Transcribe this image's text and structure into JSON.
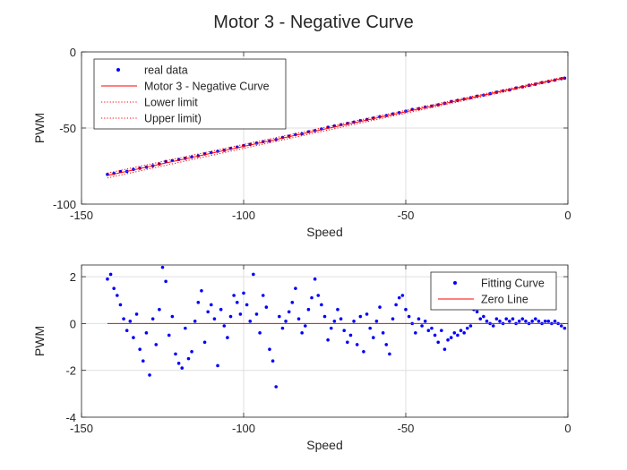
{
  "figure": {
    "title": "Motor 3 - Negative Curve"
  },
  "chart_data": [
    {
      "type": "scatter",
      "title": "Motor 3 - Negative Curve",
      "xlabel": "Speed",
      "ylabel": "PWM",
      "xlim": [
        -150,
        0
      ],
      "ylim": [
        -100,
        0
      ],
      "xticks": [
        -150,
        -100,
        -50,
        0
      ],
      "yticks": [
        -100,
        -50,
        0
      ],
      "grid": true,
      "legend_position": "top-left",
      "legend": [
        {
          "label": "real data",
          "style": "dots",
          "color": "#0000ff"
        },
        {
          "label": "Motor 3 - Negative Curve",
          "style": "solid",
          "color": "#ff0000"
        },
        {
          "label": "Lower limit",
          "style": "dotted",
          "color": "#ff0000"
        },
        {
          "label": "Upper limit)",
          "style": "dotted",
          "color": "#ff0000"
        }
      ],
      "series": [
        {
          "name": "real data",
          "type": "scatter",
          "color": "#0000ff",
          "x": [
            -142,
            -140,
            -138,
            -136,
            -134,
            -132,
            -130,
            -128,
            -126,
            -124,
            -122,
            -120,
            -118,
            -116,
            -114,
            -112,
            -110,
            -108,
            -106,
            -104,
            -102,
            -100,
            -98,
            -96,
            -94,
            -92,
            -90,
            -88,
            -86,
            -84,
            -82,
            -80,
            -78,
            -76,
            -74,
            -72,
            -70,
            -68,
            -66,
            -64,
            -62,
            -60,
            -58,
            -56,
            -54,
            -52,
            -50,
            -48,
            -46,
            -44,
            -42,
            -40,
            -38,
            -36,
            -34,
            -32,
            -30,
            -28,
            -26,
            -24,
            -22,
            -20,
            -18,
            -16,
            -14,
            -12,
            -10,
            -8,
            -6,
            -4,
            -2,
            -1
          ],
          "y": [
            -80.5,
            -79.8,
            -78.6,
            -78.5,
            -77.2,
            -76.4,
            -75.7,
            -74.8,
            -73.6,
            -72.0,
            -71.4,
            -70.7,
            -69.9,
            -69.0,
            -68.3,
            -67.0,
            -66.2,
            -65.3,
            -64.6,
            -63.4,
            -62.5,
            -61.6,
            -60.8,
            -59.9,
            -59.0,
            -58.5,
            -57.6,
            -56.2,
            -55.4,
            -54.3,
            -53.8,
            -52.5,
            -51.7,
            -50.6,
            -49.5,
            -48.6,
            -47.8,
            -47.0,
            -46.1,
            -45.1,
            -44.4,
            -43.5,
            -42.5,
            -41.8,
            -40.8,
            -39.9,
            -38.9,
            -37.8,
            -37.3,
            -36.2,
            -35.6,
            -34.8,
            -33.7,
            -32.6,
            -31.9,
            -30.9,
            -30.1,
            -29.1,
            -28.4,
            -27.4,
            -26.5,
            -25.6,
            -24.9,
            -23.7,
            -23.0,
            -21.9,
            -21.2,
            -20.2,
            -19.4,
            -18.5,
            -17.6,
            -17.2
          ]
        },
        {
          "name": "Motor 3 - Negative Curve",
          "type": "line",
          "color": "#ff0000",
          "x": [
            -142,
            -1
          ],
          "y": [
            -81.2,
            -17.0
          ]
        },
        {
          "name": "Lower limit",
          "type": "line",
          "style": "dotted",
          "color": "#ff0000",
          "x": [
            -142,
            -1
          ],
          "y": [
            -82.8,
            -17.6
          ]
        },
        {
          "name": "Upper limit)",
          "type": "line",
          "style": "dotted",
          "color": "#ff0000",
          "x": [
            -142,
            -1
          ],
          "y": [
            -79.6,
            -16.4
          ]
        }
      ]
    },
    {
      "type": "scatter",
      "xlabel": "Speed",
      "ylabel": "PWM",
      "xlim": [
        -150,
        0
      ],
      "ylim": [
        -4,
        2.5
      ],
      "xticks": [
        -150,
        -100,
        -50,
        0
      ],
      "yticks": [
        -4,
        -2,
        0,
        2
      ],
      "grid": true,
      "legend_position": "top-right",
      "legend": [
        {
          "label": "Fitting Curve",
          "style": "dots",
          "color": "#0000ff"
        },
        {
          "label": "Zero Line",
          "style": "solid",
          "color": "#ff0000"
        }
      ],
      "series": [
        {
          "name": "Fitting Curve",
          "type": "scatter",
          "color": "#0000ff",
          "x": [
            -142,
            -141,
            -140,
            -139,
            -138,
            -137,
            -136,
            -135,
            -134,
            -133,
            -132,
            -131,
            -130,
            -129,
            -128,
            -127,
            -126,
            -125,
            -124,
            -123,
            -122,
            -121,
            -120,
            -119,
            -118,
            -117,
            -116,
            -115,
            -114,
            -113,
            -112,
            -111,
            -110,
            -109,
            -108,
            -107,
            -106,
            -105,
            -104,
            -103,
            -102,
            -101,
            -100,
            -99,
            -98,
            -97,
            -96,
            -95,
            -94,
            -93,
            -92,
            -91,
            -90,
            -89,
            -88,
            -87,
            -86,
            -85,
            -84,
            -83,
            -82,
            -81,
            -80,
            -79,
            -78,
            -77,
            -76,
            -75,
            -74,
            -73,
            -72,
            -71,
            -70,
            -69,
            -68,
            -67,
            -66,
            -65,
            -64,
            -63,
            -62,
            -61,
            -60,
            -59,
            -58,
            -57,
            -56,
            -55,
            -54,
            -53,
            -52,
            -51,
            -50,
            -49,
            -48,
            -47,
            -46,
            -45,
            -44,
            -43,
            -42,
            -41,
            -40,
            -39,
            -38,
            -37,
            -36,
            -35,
            -34,
            -33,
            -32,
            -31,
            -30,
            -29,
            -28,
            -27,
            -26,
            -25,
            -24,
            -23,
            -22,
            -21,
            -20,
            -19,
            -18,
            -17,
            -16,
            -15,
            -14,
            -13,
            -12,
            -11,
            -10,
            -9,
            -8,
            -7,
            -6,
            -5,
            -4,
            -3,
            -2,
            -1
          ],
          "y": [
            1.9,
            2.1,
            1.5,
            1.2,
            0.8,
            0.2,
            -0.3,
            0.1,
            -0.6,
            0.4,
            -1.1,
            -1.6,
            -0.4,
            -2.2,
            0.2,
            -0.9,
            0.6,
            2.4,
            1.8,
            -0.5,
            0.3,
            -1.3,
            -1.7,
            -1.9,
            -0.2,
            -1.5,
            -1.2,
            0.1,
            0.9,
            1.4,
            -0.8,
            0.5,
            0.8,
            0.2,
            -1.8,
            0.6,
            -0.1,
            -0.6,
            0.3,
            1.2,
            0.9,
            0.4,
            1.3,
            0.8,
            0.1,
            2.1,
            0.4,
            -0.4,
            1.2,
            0.7,
            -1.1,
            -1.6,
            -2.7,
            0.3,
            -0.2,
            0.1,
            0.5,
            0.9,
            1.5,
            0.2,
            -0.4,
            -0.1,
            0.6,
            1.1,
            1.9,
            1.2,
            0.8,
            0.3,
            -0.7,
            -0.2,
            0.1,
            0.6,
            0.2,
            -0.3,
            -0.8,
            -0.5,
            0.1,
            -0.9,
            0.3,
            -1.2,
            0.4,
            -0.2,
            -0.6,
            0.1,
            0.7,
            -0.4,
            -0.9,
            -1.3,
            0.2,
            0.8,
            1.1,
            1.2,
            0.6,
            0.3,
            0.0,
            -0.4,
            0.2,
            -0.1,
            0.1,
            -0.3,
            -0.2,
            -0.5,
            -0.8,
            -0.3,
            -1.1,
            -0.7,
            -0.6,
            -0.4,
            -0.5,
            -0.3,
            -0.4,
            -0.2,
            -0.1,
            0.6,
            0.5,
            0.2,
            0.3,
            0.1,
            0.0,
            -0.1,
            0.2,
            0.1,
            0.0,
            0.2,
            0.1,
            0.2,
            0.0,
            0.1,
            0.2,
            0.1,
            0.0,
            0.1,
            0.2,
            0.1,
            0.0,
            0.1,
            0.1,
            0.0,
            0.1,
            0.0,
            -0.1,
            -0.2
          ]
        },
        {
          "name": "Zero Line",
          "type": "line",
          "color": "#ff0000",
          "x": [
            -142,
            -1
          ],
          "y": [
            0,
            0
          ]
        }
      ]
    }
  ]
}
